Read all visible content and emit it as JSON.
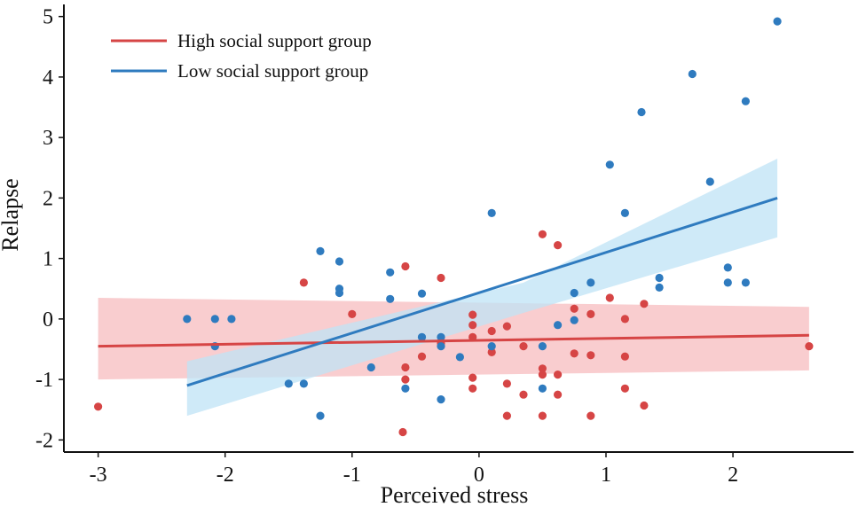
{
  "chart_data": {
    "type": "scatter",
    "title": "",
    "xlabel": "Perceived stress",
    "ylabel": "Relapse",
    "xlim": [
      -3.27,
      2.95
    ],
    "ylim": [
      -2.2,
      5.2
    ],
    "xticks": [
      -3,
      -2,
      -1,
      0,
      1,
      2
    ],
    "yticks": [
      -2,
      -1,
      0,
      1,
      2,
      3,
      4,
      5
    ],
    "xtick_labels": [
      "-3",
      "-2",
      "-1",
      "0",
      "1",
      "2"
    ],
    "ytick_labels": [
      "-2",
      "-1",
      "0",
      "1",
      "2",
      "3",
      "4",
      "5"
    ],
    "grid": false,
    "legend": {
      "placement": "top-left",
      "entries": [
        {
          "label": "High social support group",
          "color": "#d64545"
        },
        {
          "label": "Low social support group",
          "color": "#2f7bbf"
        }
      ]
    },
    "series": [
      {
        "name": "High social support group",
        "color": "#d64545",
        "band_color": "#f7b8bb",
        "fit": {
          "x": [
            -3.0,
            2.6
          ],
          "y": [
            -0.45,
            -0.27
          ]
        },
        "band": {
          "x": [
            -3.0,
            2.6
          ],
          "lower": [
            -1.0,
            -0.85
          ],
          "upper": [
            0.35,
            0.2
          ]
        },
        "points": [
          [
            -3.0,
            -1.45
          ],
          [
            -1.38,
            0.6
          ],
          [
            -1.0,
            0.08
          ],
          [
            -0.58,
            0.87
          ],
          [
            -0.58,
            -0.8
          ],
          [
            -0.58,
            -1.0
          ],
          [
            -0.6,
            -1.87
          ],
          [
            -0.3,
            0.68
          ],
          [
            -0.45,
            -0.62
          ],
          [
            -0.3,
            -0.4
          ],
          [
            -0.05,
            0.07
          ],
          [
            -0.05,
            -0.1
          ],
          [
            -0.05,
            -0.3
          ],
          [
            -0.05,
            -0.97
          ],
          [
            -0.05,
            -1.15
          ],
          [
            0.1,
            -0.2
          ],
          [
            0.1,
            -0.55
          ],
          [
            0.22,
            -0.12
          ],
          [
            0.22,
            -1.07
          ],
          [
            0.22,
            -1.6
          ],
          [
            0.35,
            -0.45
          ],
          [
            0.35,
            -1.25
          ],
          [
            0.5,
            1.4
          ],
          [
            0.5,
            -0.82
          ],
          [
            0.5,
            -0.92
          ],
          [
            0.5,
            -1.6
          ],
          [
            0.62,
            1.22
          ],
          [
            0.62,
            -0.92
          ],
          [
            0.62,
            -1.25
          ],
          [
            0.75,
            0.17
          ],
          [
            0.75,
            -0.57
          ],
          [
            0.88,
            0.08
          ],
          [
            0.88,
            -0.6
          ],
          [
            0.88,
            -1.6
          ],
          [
            1.03,
            0.35
          ],
          [
            1.15,
            0.0
          ],
          [
            1.15,
            -0.62
          ],
          [
            1.15,
            -1.15
          ],
          [
            1.3,
            0.25
          ],
          [
            1.3,
            -1.43
          ],
          [
            2.6,
            -0.45
          ]
        ]
      },
      {
        "name": "Low social support group",
        "color": "#2f7bbf",
        "band_color": "#bfe3f5",
        "fit": {
          "x": [
            -2.3,
            2.35
          ],
          "y": [
            -1.1,
            2.0
          ]
        },
        "band": {
          "x": [
            -2.3,
            0.35,
            2.35
          ],
          "lower": [
            -1.6,
            0.1,
            1.35
          ],
          "upper": [
            -0.7,
            0.6,
            2.65
          ]
        },
        "points": [
          [
            -2.3,
            0.0
          ],
          [
            -2.08,
            0.0
          ],
          [
            -1.95,
            0.0
          ],
          [
            -2.08,
            -0.45
          ],
          [
            -1.5,
            -1.07
          ],
          [
            -1.38,
            -1.07
          ],
          [
            -1.25,
            1.12
          ],
          [
            -1.25,
            -1.6
          ],
          [
            -1.1,
            0.95
          ],
          [
            -1.1,
            0.5
          ],
          [
            -1.1,
            0.43
          ],
          [
            -0.85,
            -0.8
          ],
          [
            -0.7,
            0.77
          ],
          [
            -0.7,
            0.33
          ],
          [
            -0.58,
            -1.15
          ],
          [
            -0.45,
            0.42
          ],
          [
            -0.45,
            -0.3
          ],
          [
            -0.3,
            -0.3
          ],
          [
            -0.3,
            -0.45
          ],
          [
            -0.3,
            -1.33
          ],
          [
            -0.15,
            -0.63
          ],
          [
            0.1,
            1.75
          ],
          [
            0.1,
            -0.45
          ],
          [
            0.5,
            -0.45
          ],
          [
            0.5,
            -1.15
          ],
          [
            0.62,
            -0.1
          ],
          [
            0.75,
            0.43
          ],
          [
            0.75,
            -0.02
          ],
          [
            0.88,
            0.6
          ],
          [
            1.03,
            2.55
          ],
          [
            1.15,
            1.75
          ],
          [
            1.28,
            3.42
          ],
          [
            1.42,
            0.68
          ],
          [
            1.42,
            0.52
          ],
          [
            1.68,
            4.05
          ],
          [
            1.82,
            2.27
          ],
          [
            1.96,
            0.85
          ],
          [
            1.96,
            0.6
          ],
          [
            2.1,
            3.6
          ],
          [
            2.1,
            0.6
          ],
          [
            2.35,
            4.92
          ]
        ]
      }
    ]
  }
}
